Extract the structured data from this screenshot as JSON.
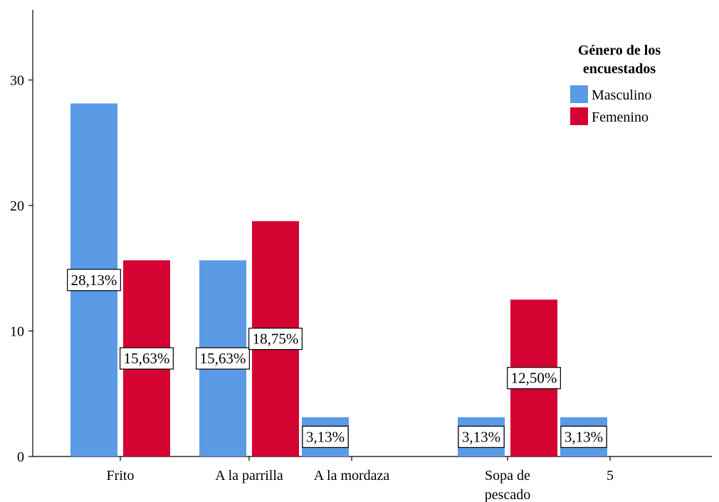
{
  "chart_data": {
    "type": "bar",
    "categories": [
      [
        "Frito"
      ],
      [
        "A la parrilla"
      ],
      [
        "A la mordaza"
      ],
      [
        "Sopa de",
        "pescado"
      ],
      [
        "5"
      ]
    ],
    "series": [
      {
        "name": "Masculino",
        "color": "#5b9ae5",
        "values": [
          28.13,
          15.63,
          3.13,
          3.13,
          3.13
        ],
        "labels": [
          "28,13%",
          "15,63%",
          "3,13%",
          "3,13%",
          "3,13%"
        ]
      },
      {
        "name": "Femenino",
        "color": "#d40332",
        "values": [
          15.63,
          18.75,
          0,
          12.5,
          0
        ],
        "labels": [
          "15,63%",
          "18,75%",
          "",
          "12,50%",
          ""
        ]
      }
    ],
    "yticks": [
      0,
      10,
      20,
      30
    ],
    "ylim": [
      0,
      33
    ],
    "legend": {
      "title_lines": [
        "Género de los",
        "encuestados"
      ],
      "placement": "top-right"
    },
    "grid": false,
    "xlabel": "",
    "ylabel": ""
  }
}
